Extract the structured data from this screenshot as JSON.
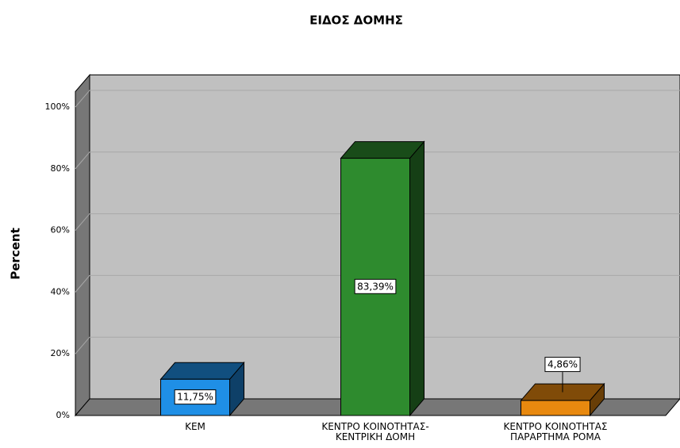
{
  "chart_data": {
    "type": "bar3d",
    "title": "ΕΙΔΟΣ ΔΟΜΗΣ",
    "y_label": "Percent",
    "categories": [
      "ΚΕΜ",
      "ΚΕΝΤΡΟ ΚΟΙΝΟΤΗΤΑΣ-ΚΕΝΤΡΙΚΗ ΔΟΜΗ",
      "ΚΕΝΤΡΟ ΚΟΙΝΟΤΗΤΑΣ ΠΑΡΑΡΤΗΜΑ ΡΟΜΑ"
    ],
    "values": [
      11.75,
      83.39,
      4.86
    ],
    "value_labels": [
      "11,75%",
      "83,39%",
      "4,86%"
    ],
    "colors": [
      "#1f8fe6",
      "#2e8b2e",
      "#e8890f"
    ],
    "ylim": [
      0,
      105
    ],
    "yticks": [
      {
        "value": 0,
        "label": "0%"
      },
      {
        "value": 20,
        "label": "20%"
      },
      {
        "value": 40,
        "label": "40%"
      },
      {
        "value": 60,
        "label": "60%"
      },
      {
        "value": 80,
        "label": "80%"
      },
      {
        "value": 100,
        "label": "100%"
      }
    ],
    "grid": true
  }
}
